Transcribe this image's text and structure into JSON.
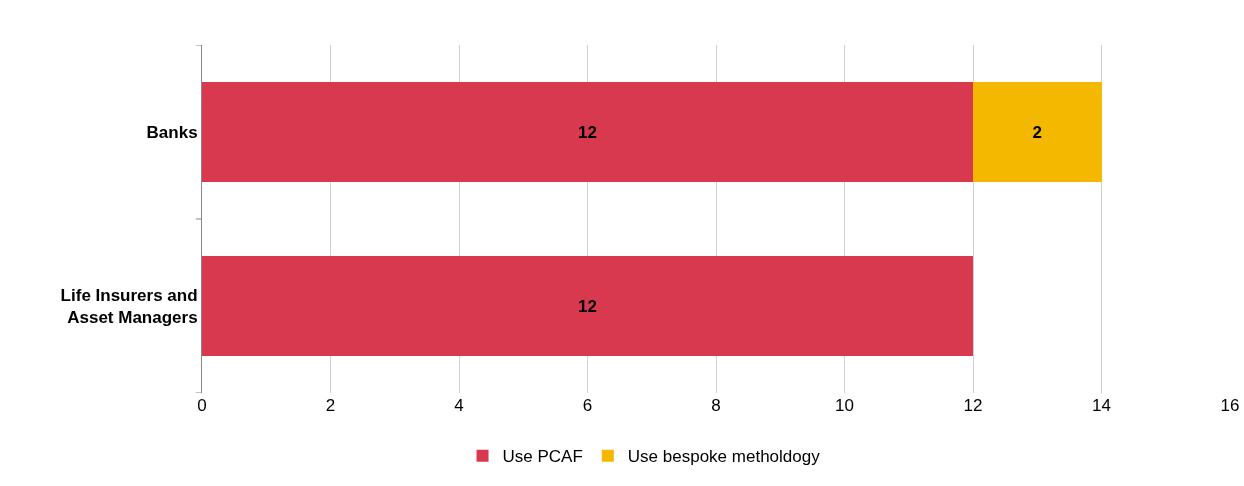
{
  "chart_data": {
    "type": "bar",
    "orientation": "horizontal",
    "stacked": true,
    "categories": [
      "Banks",
      "Life Insurers and Asset Managers"
    ],
    "series": [
      {
        "name": "Use PCAF",
        "color": "#d9394f",
        "values": [
          12,
          12
        ]
      },
      {
        "name": "Use bespoke metholdogy",
        "color": "#f5b800",
        "values": [
          2,
          null
        ]
      }
    ],
    "xlim": [
      0,
      16
    ],
    "xticks": [
      0,
      2,
      4,
      6,
      8,
      10,
      12,
      14,
      16
    ],
    "grid": "x",
    "legend": "bottom",
    "data_labels": true
  }
}
